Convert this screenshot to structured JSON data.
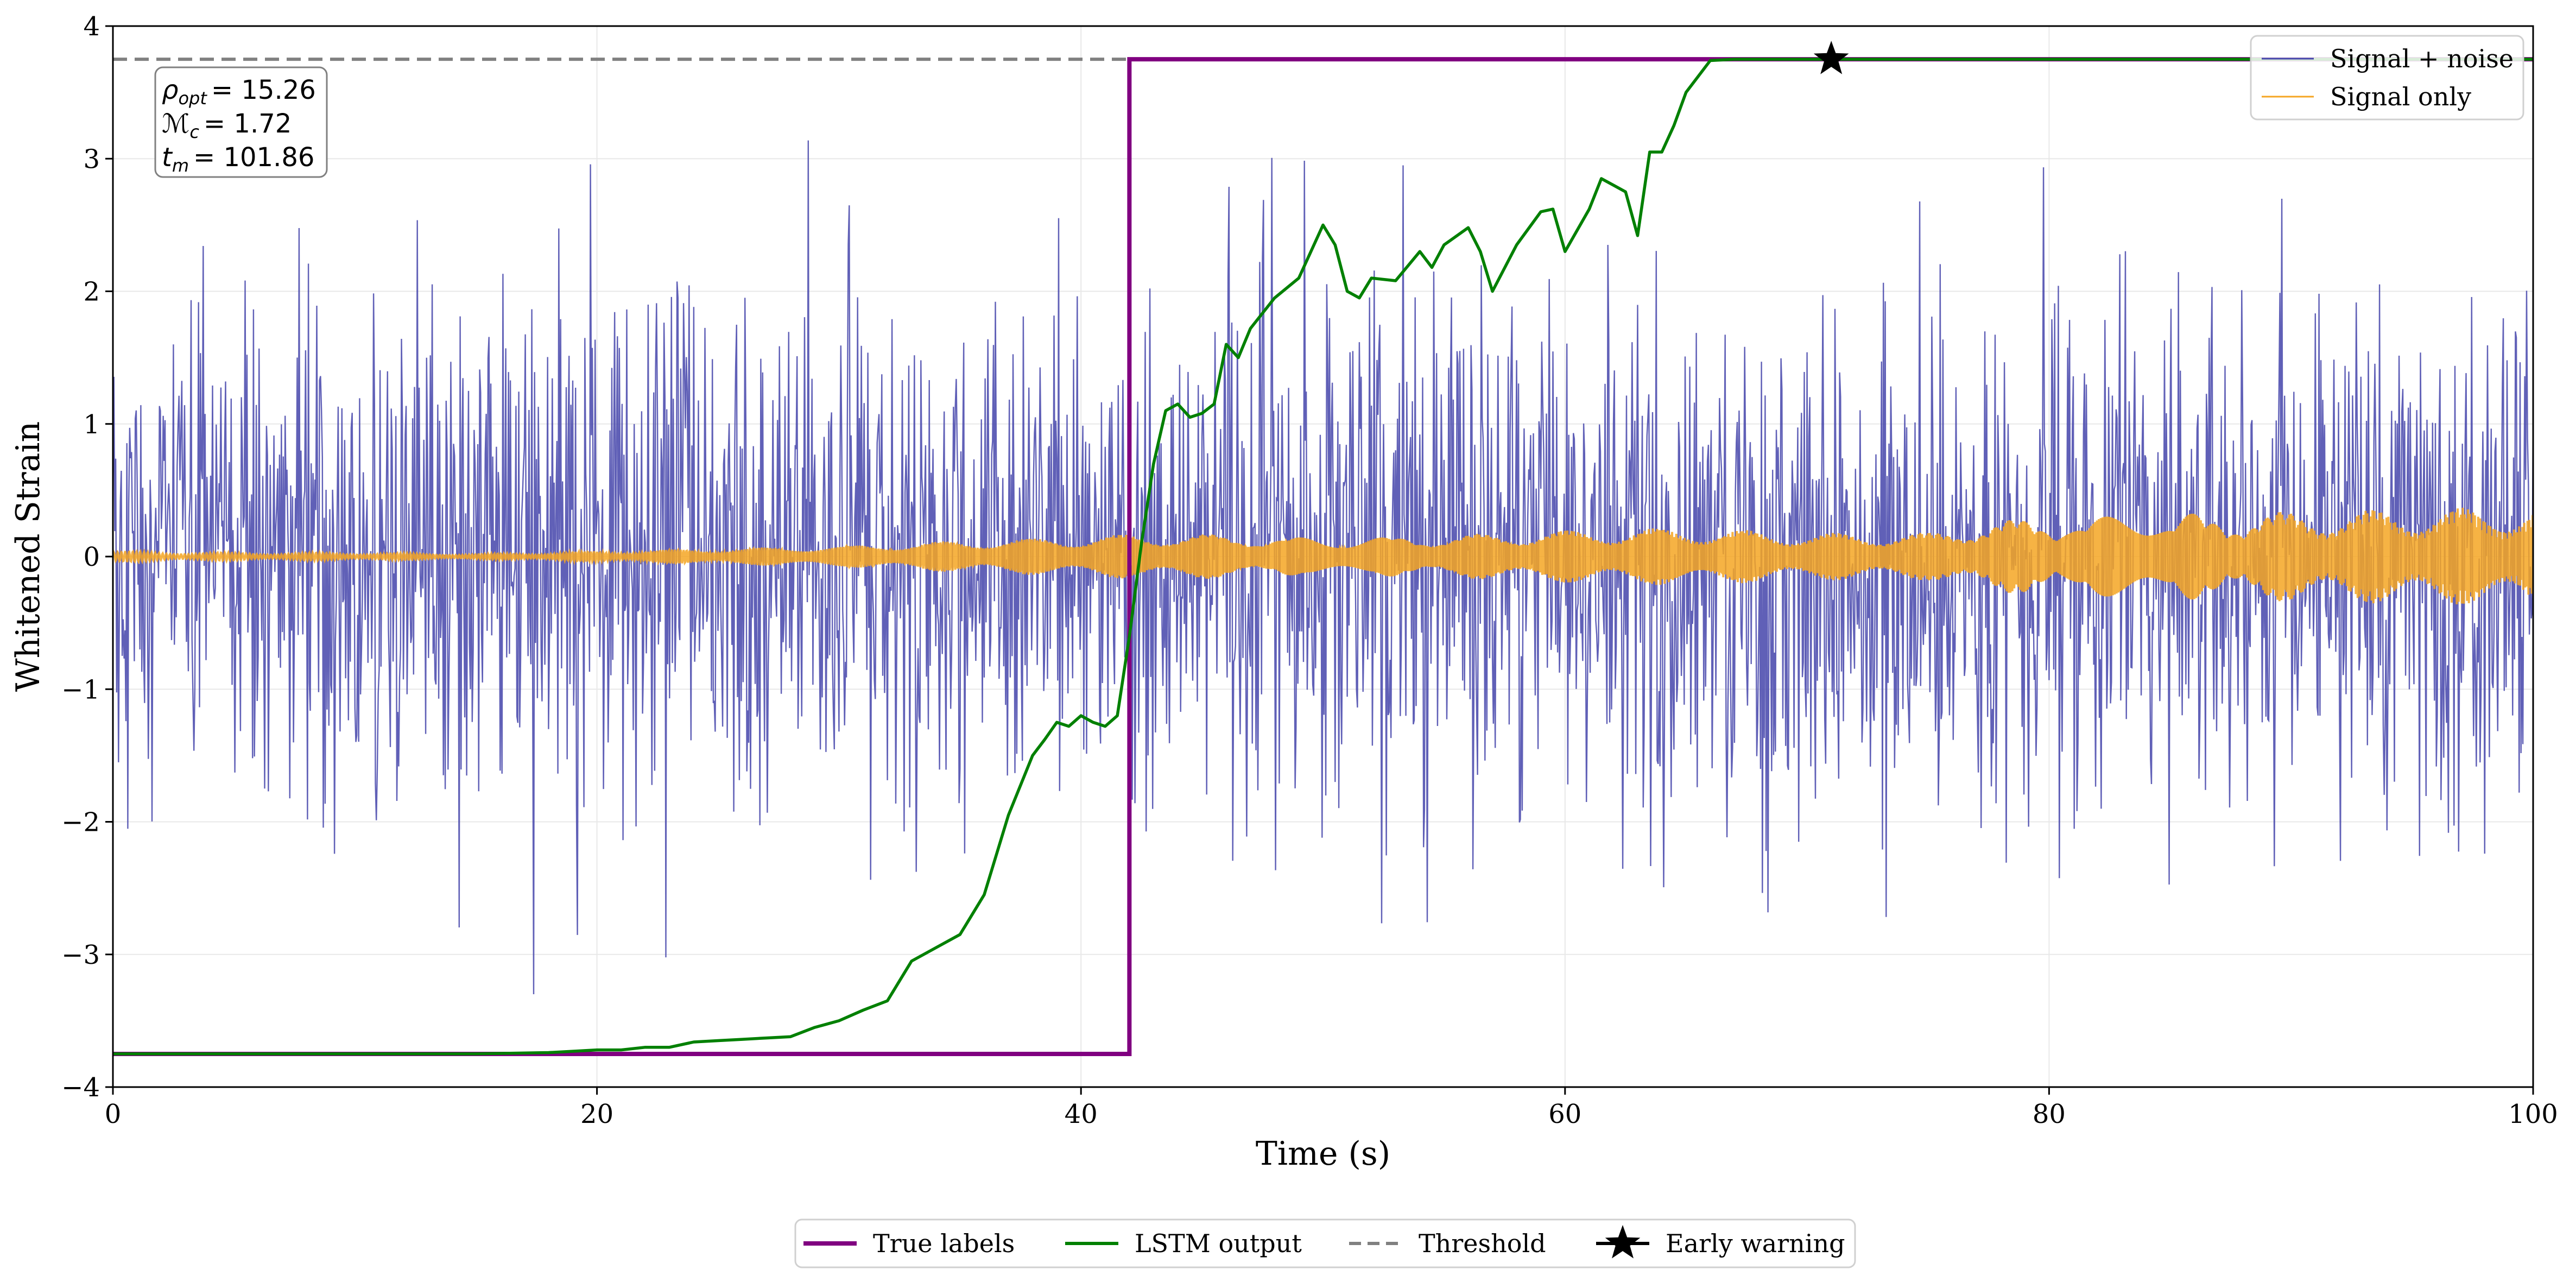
{
  "chart_data": {
    "type": "line",
    "xlabel": "Time (s)",
    "ylabel": "Whitened Strain",
    "xlim": [
      0,
      100
    ],
    "ylim": [
      -4,
      4
    ],
    "x_ticks": [
      0,
      20,
      40,
      60,
      80,
      100
    ],
    "x_tick_labels": [
      "0",
      "20",
      "40",
      "60",
      "80",
      "100"
    ],
    "y_ticks": [
      -4,
      -3,
      -2,
      -1,
      0,
      1,
      2,
      3,
      4
    ],
    "y_tick_labels": [
      "−4",
      "−3",
      "−2",
      "−1",
      "0",
      "1",
      "2",
      "3",
      "4"
    ],
    "grid": true,
    "colors": {
      "noise": "#4444aa",
      "signal": "#f5a623",
      "true_labels": "#800080",
      "lstm": "#008000",
      "threshold": "#808080",
      "marker": "#000000"
    },
    "threshold_value": 3.75,
    "true_labels": {
      "step_time": 42.0,
      "low": -3.75,
      "high": 3.75
    },
    "early_warning": {
      "x": 71.0,
      "y": 3.75
    },
    "signal_only_envelope": {
      "x": [
        0,
        5,
        10,
        15,
        20,
        25,
        30,
        35,
        40,
        42,
        45,
        50,
        55,
        60,
        65,
        70,
        75,
        77,
        80,
        85,
        90,
        95,
        100
      ],
      "amplitude": [
        0.04,
        0.03,
        0.03,
        0.02,
        0.04,
        0.06,
        0.08,
        0.12,
        0.15,
        0.17,
        0.17,
        0.14,
        0.16,
        0.2,
        0.22,
        0.18,
        0.18,
        0.26,
        0.3,
        0.32,
        0.34,
        0.36,
        0.38
      ]
    },
    "noise_sigma": 0.95,
    "lstm_output": {
      "x": [
        0,
        10,
        15,
        18,
        20,
        21,
        22,
        23,
        24,
        25,
        26,
        27,
        28,
        29,
        30,
        31,
        32,
        33,
        34,
        35,
        36,
        37,
        38,
        38.5,
        39,
        39.5,
        40,
        40.5,
        41,
        41.5,
        42,
        42.5,
        43,
        43.5,
        44,
        44.5,
        45,
        45.5,
        46,
        46.5,
        47,
        48,
        49,
        50,
        50.5,
        51,
        51.5,
        52,
        53,
        54,
        54.5,
        55,
        56,
        56.5,
        57,
        58,
        59,
        59.5,
        60,
        61,
        61.5,
        62,
        62.5,
        63,
        63.5,
        64,
        64.5,
        65,
        66,
        67,
        70,
        75,
        100
      ],
      "y": [
        -3.75,
        -3.75,
        -3.75,
        -3.74,
        -3.72,
        -3.72,
        -3.7,
        -3.7,
        -3.66,
        -3.65,
        -3.64,
        -3.63,
        -3.62,
        -3.55,
        -3.5,
        -3.42,
        -3.35,
        -3.05,
        -2.95,
        -2.85,
        -2.55,
        -1.95,
        -1.5,
        -1.38,
        -1.25,
        -1.28,
        -1.2,
        -1.25,
        -1.28,
        -1.2,
        -0.6,
        0.1,
        0.7,
        1.1,
        1.15,
        1.05,
        1.08,
        1.15,
        1.6,
        1.5,
        1.72,
        1.95,
        2.1,
        2.5,
        2.35,
        2.0,
        1.95,
        2.1,
        2.08,
        2.3,
        2.18,
        2.35,
        2.48,
        2.3,
        2.0,
        2.35,
        2.6,
        2.62,
        2.3,
        2.62,
        2.85,
        2.8,
        2.75,
        2.42,
        3.05,
        3.05,
        3.25,
        3.5,
        3.74,
        3.75,
        3.75,
        3.75,
        3.75
      ]
    },
    "stats_box": {
      "rho_symbol": "ρ",
      "rho_subscript": "opt",
      "rho_value": "= 15.26",
      "mc_symbol": "ℳ",
      "mc_subscript": "c",
      "mc_value": "= 1.72",
      "tm_symbol": "t",
      "tm_subscript": "m",
      "tm_value": "= 101.86"
    },
    "legend_inner": [
      {
        "label": "Signal + noise",
        "color": "#4444aa"
      },
      {
        "label": "Signal only",
        "color": "#f5a623"
      }
    ],
    "legend_outer": [
      {
        "label": "True labels",
        "color": "#800080",
        "style": "solid"
      },
      {
        "label": "LSTM output",
        "color": "#008000",
        "style": "solid"
      },
      {
        "label": "Threshold",
        "color": "#808080",
        "style": "dashed"
      },
      {
        "label": "Early warning",
        "color": "#000000",
        "style": "star"
      }
    ]
  }
}
